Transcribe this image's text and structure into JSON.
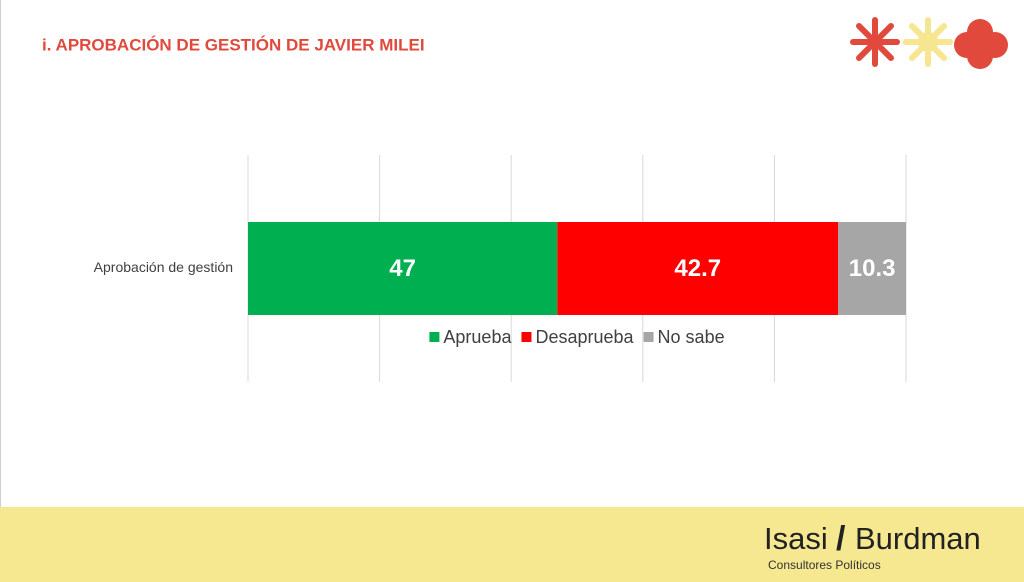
{
  "chart_data": {
    "type": "stacked-bar-horizontal",
    "title": "i. APROBACIÓN DE GESTIÓN DE JAVIER MILEI",
    "categories": [
      "Aprobación de gestión"
    ],
    "series": [
      {
        "name": "Aprueba",
        "color": "#00b050",
        "values": [
          47
        ]
      },
      {
        "name": "Desaprueba",
        "color": "#ff0000",
        "values": [
          42.7
        ]
      },
      {
        "name": "No sabe",
        "color": "#a6a6a6",
        "values": [
          10.3
        ]
      }
    ],
    "xlim": [
      0,
      100
    ],
    "xticks": [
      0,
      20,
      40,
      60,
      80,
      100
    ],
    "grid": true,
    "legend": "bottom"
  },
  "logo": {
    "left": "Isasi",
    "separator": "/",
    "right": "Burdman",
    "tagline": "Consultores Políticos"
  }
}
